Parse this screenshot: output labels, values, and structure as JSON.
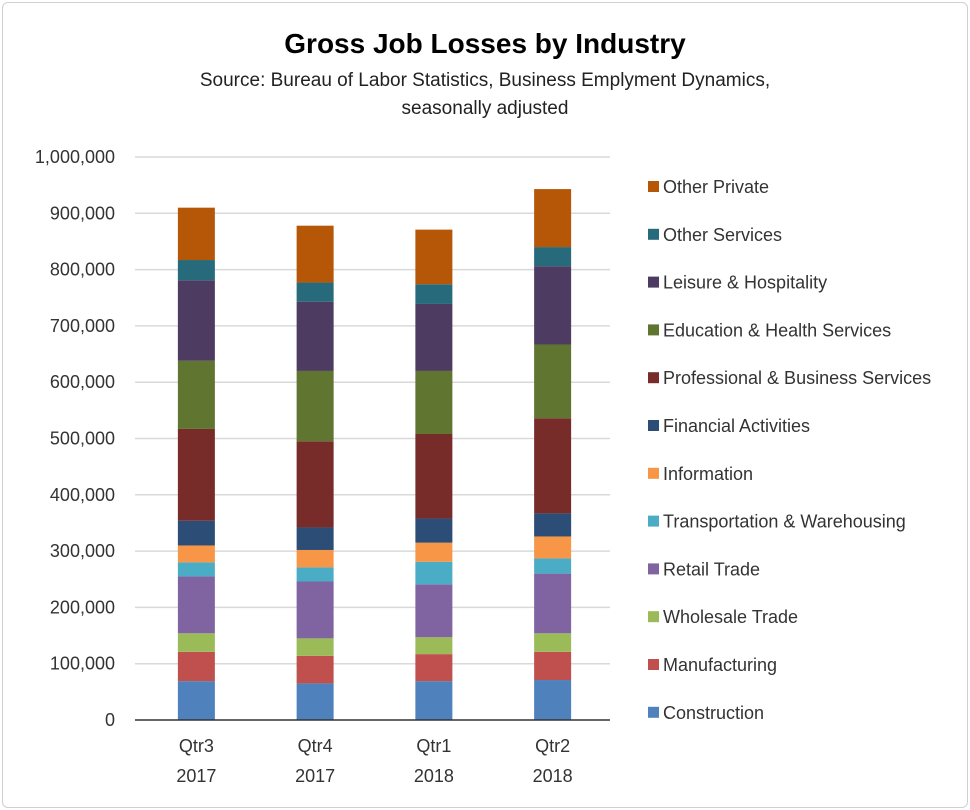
{
  "chart_data": {
    "type": "bar",
    "stacked": true,
    "title": "Gross Job Losses by Industry",
    "subtitle_line1": "Source:  Bureau of Labor Statistics, Business Emplyment Dynamics,",
    "subtitle_line2": "seasonally adjusted",
    "xlabel": "",
    "ylabel": "",
    "ylim": [
      0,
      1000000
    ],
    "yticks": [
      0,
      100000,
      200000,
      300000,
      400000,
      500000,
      600000,
      700000,
      800000,
      900000,
      1000000
    ],
    "ytick_labels": [
      "0",
      "100,000",
      "200,000",
      "300,000",
      "400,000",
      "500,000",
      "600,000",
      "700,000",
      "800,000",
      "900,000",
      "1,000,000"
    ],
    "grid": true,
    "legend_position": "right",
    "categories": [
      [
        "Qtr3",
        "2017"
      ],
      [
        "Qtr4",
        "2017"
      ],
      [
        "Qtr1",
        "2018"
      ],
      [
        "Qtr2",
        "2018"
      ]
    ],
    "series": [
      {
        "name": "Construction",
        "color": "#4F81BD",
        "values": [
          69000,
          65000,
          69000,
          71000
        ]
      },
      {
        "name": "Manufacturing",
        "color": "#C0504D",
        "values": [
          52000,
          49000,
          48000,
          50000
        ]
      },
      {
        "name": "Wholesale Trade",
        "color": "#9BBB59",
        "values": [
          33000,
          31000,
          30000,
          33000
        ]
      },
      {
        "name": "Retail Trade",
        "color": "#8064A2",
        "values": [
          101000,
          101000,
          94000,
          106000
        ]
      },
      {
        "name": "Transportation & Warehousing",
        "color": "#4BACC6",
        "values": [
          25000,
          25000,
          40000,
          27000
        ]
      },
      {
        "name": "Information",
        "color": "#F79646",
        "values": [
          30000,
          31000,
          34000,
          39000
        ]
      },
      {
        "name": "Financial Activities",
        "color": "#2C4D75",
        "values": [
          44000,
          40000,
          43000,
          41000
        ]
      },
      {
        "name": "Professional & Business Services",
        "color": "#772C2A",
        "values": [
          163000,
          153000,
          150000,
          169000
        ]
      },
      {
        "name": "Education & Health Services",
        "color": "#5F7530",
        "values": [
          121000,
          125000,
          112000,
          131000
        ]
      },
      {
        "name": "Leisure & Hospitality",
        "color": "#4D3B62",
        "values": [
          143000,
          123000,
          119000,
          139000
        ]
      },
      {
        "name": "Other Services",
        "color": "#276A7C",
        "values": [
          36000,
          34000,
          35000,
          34000
        ]
      },
      {
        "name": "Other Private",
        "color": "#B65708",
        "values": [
          93000,
          101000,
          97000,
          103000
        ]
      }
    ]
  }
}
